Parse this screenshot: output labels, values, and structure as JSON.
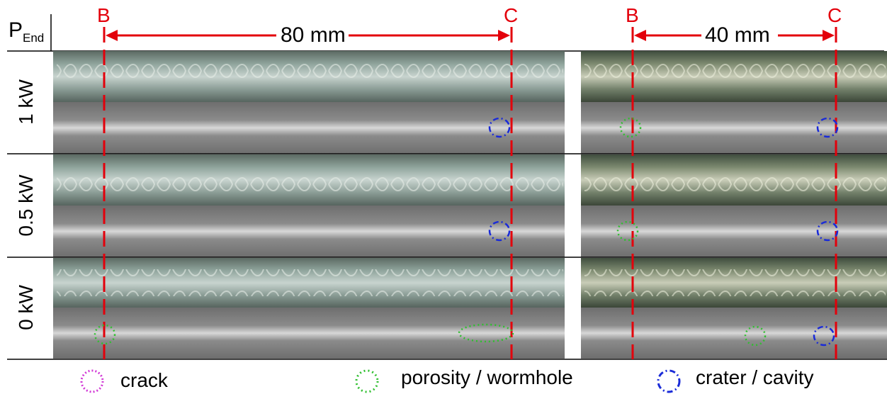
{
  "header": {
    "p_main": "P",
    "p_sub": "End",
    "left_marker_b": "B",
    "left_marker_c": "C",
    "left_distance": "80 mm",
    "right_marker_b": "B",
    "right_marker_c": "C",
    "right_distance": "40 mm"
  },
  "rows": [
    {
      "label": "1 kW"
    },
    {
      "label": "0.5 kW"
    },
    {
      "label": "0 kW"
    }
  ],
  "legend": [
    {
      "label": "crack",
      "color": "#d23ad6",
      "style": "dotted-magenta"
    },
    {
      "label": "porosity / wormhole",
      "color": "#2fbf2f",
      "style": "dotted-green"
    },
    {
      "label": "crater / cavity",
      "color": "#1a2bd8",
      "style": "dash-dot-blue"
    }
  ],
  "colors": {
    "marker_red": "#e3000b",
    "crack": "#d23ad6",
    "porosity": "#2fbf2f",
    "crater": "#1a2bd8"
  }
}
